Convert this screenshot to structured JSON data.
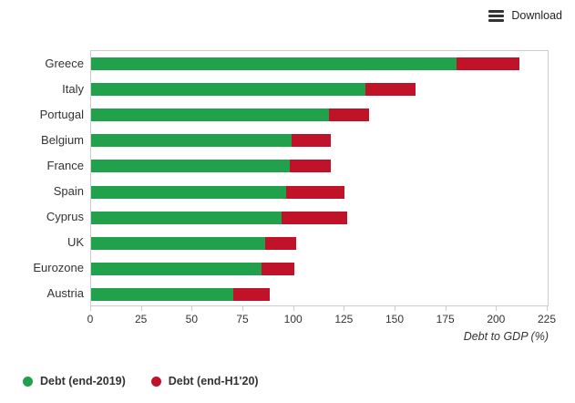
{
  "download": {
    "label": "Download"
  },
  "colors": {
    "green": "#21a14b",
    "red": "#c01228",
    "border": "#cccccc"
  },
  "chart_data": {
    "type": "bar",
    "orientation": "horizontal",
    "stacked": true,
    "note": "Red segment spans from the end-2019 value up to the end-H1'20 value",
    "categories": [
      "Greece",
      "Italy",
      "Portugal",
      "Belgium",
      "France",
      "Spain",
      "Cyprus",
      "UK",
      "Eurozone",
      "Austria"
    ],
    "series": [
      {
        "name": "Debt (end-2019)",
        "color_key": "green",
        "values": [
          180,
          135,
          117,
          99,
          98,
          96,
          94,
          86,
          84,
          70
        ]
      },
      {
        "name": "Debt (end-H1'20)",
        "color_key": "red",
        "values": [
          211,
          160,
          137,
          118,
          118,
          125,
          126,
          101,
          100,
          88
        ]
      }
    ],
    "xlabel": "Debt to GDP (%)",
    "xlim": [
      0,
      225
    ],
    "xticks": [
      0,
      25,
      50,
      75,
      100,
      125,
      150,
      175,
      200,
      225
    ],
    "grid": false,
    "legend_position": "bottom"
  },
  "legend": {
    "items": [
      {
        "label": "Debt (end-2019)",
        "color": "#21a14b"
      },
      {
        "label": "Debt (end-H1'20)",
        "color": "#c01228"
      }
    ]
  }
}
